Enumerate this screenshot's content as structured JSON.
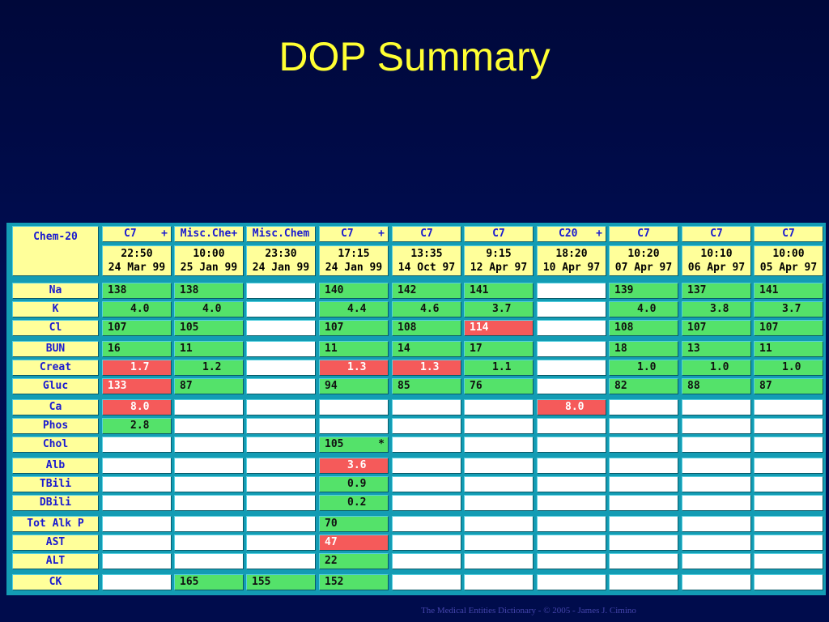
{
  "title": "DOP Summary",
  "footer": "The Medical Entities Dictionary - © 2005 - James J. Cimino",
  "panel_label": "Chem-20",
  "colors": {
    "normal": "#54e26a",
    "abnormal": "#f55a5a",
    "empty": "#ffffff",
    "header": "#ffff9a",
    "frame": "#139cb4"
  },
  "columns": [
    {
      "name": "C7",
      "more": "+",
      "time": "22:50",
      "date": "24 Mar 99"
    },
    {
      "name": "Misc.Che+",
      "more": "",
      "time": "10:00",
      "date": "25 Jan 99"
    },
    {
      "name": "Misc.Chem",
      "more": "",
      "time": "23:30",
      "date": "24 Jan 99"
    },
    {
      "name": "C7",
      "more": "+",
      "time": "17:15",
      "date": "24 Jan 99"
    },
    {
      "name": "C7",
      "more": "",
      "time": "13:35",
      "date": "14 Oct 97"
    },
    {
      "name": "C7",
      "more": "",
      "time": "9:15",
      "date": "12 Apr 97"
    },
    {
      "name": "C20",
      "more": "+",
      "time": "18:20",
      "date": "10 Apr 97"
    },
    {
      "name": "C7",
      "more": "",
      "time": "10:20",
      "date": "07 Apr 97"
    },
    {
      "name": "C7",
      "more": "",
      "time": "10:10",
      "date": "06 Apr 97"
    },
    {
      "name": "C7",
      "more": "",
      "time": "10:00",
      "date": "05 Apr 97"
    }
  ],
  "groups": [
    {
      "rows": [
        {
          "label": "Na",
          "cells": [
            {
              "v": "138",
              "s": "g"
            },
            {
              "v": "138",
              "s": "g"
            },
            {
              "v": "",
              "s": "w"
            },
            {
              "v": "140",
              "s": "g"
            },
            {
              "v": "142",
              "s": "g"
            },
            {
              "v": "141",
              "s": "g"
            },
            {
              "v": "",
              "s": "w"
            },
            {
              "v": "139",
              "s": "g"
            },
            {
              "v": "137",
              "s": "g"
            },
            {
              "v": "141",
              "s": "g"
            }
          ]
        },
        {
          "label": "K",
          "cells": [
            {
              "v": "4.0",
              "s": "g",
              "d": 1
            },
            {
              "v": "4.0",
              "s": "g",
              "d": 1
            },
            {
              "v": "",
              "s": "w"
            },
            {
              "v": "4.4",
              "s": "g",
              "d": 1
            },
            {
              "v": "4.6",
              "s": "g",
              "d": 1
            },
            {
              "v": "3.7",
              "s": "g",
              "d": 1
            },
            {
              "v": "",
              "s": "w"
            },
            {
              "v": "4.0",
              "s": "g",
              "d": 1
            },
            {
              "v": "3.8",
              "s": "g",
              "d": 1
            },
            {
              "v": "3.7",
              "s": "g",
              "d": 1
            }
          ]
        },
        {
          "label": "Cl",
          "cells": [
            {
              "v": "107",
              "s": "g"
            },
            {
              "v": "105",
              "s": "g"
            },
            {
              "v": "",
              "s": "w"
            },
            {
              "v": "107",
              "s": "g"
            },
            {
              "v": "108",
              "s": "g"
            },
            {
              "v": "114",
              "s": "r"
            },
            {
              "v": "",
              "s": "w"
            },
            {
              "v": "108",
              "s": "g"
            },
            {
              "v": "107",
              "s": "g"
            },
            {
              "v": "107",
              "s": "g"
            }
          ]
        }
      ]
    },
    {
      "rows": [
        {
          "label": "BUN",
          "cells": [
            {
              "v": "16",
              "s": "g"
            },
            {
              "v": "11",
              "s": "g"
            },
            {
              "v": "",
              "s": "w"
            },
            {
              "v": "11",
              "s": "g"
            },
            {
              "v": "14",
              "s": "g"
            },
            {
              "v": "17",
              "s": "g"
            },
            {
              "v": "",
              "s": "w"
            },
            {
              "v": "18",
              "s": "g"
            },
            {
              "v": "13",
              "s": "g"
            },
            {
              "v": "11",
              "s": "g"
            }
          ]
        },
        {
          "label": "Creat",
          "cells": [
            {
              "v": "1.7",
              "s": "r",
              "d": 1
            },
            {
              "v": "1.2",
              "s": "g",
              "d": 1
            },
            {
              "v": "",
              "s": "w"
            },
            {
              "v": "1.3",
              "s": "r",
              "d": 1
            },
            {
              "v": "1.3",
              "s": "r",
              "d": 1
            },
            {
              "v": "1.1",
              "s": "g",
              "d": 1
            },
            {
              "v": "",
              "s": "w"
            },
            {
              "v": "1.0",
              "s": "g",
              "d": 1
            },
            {
              "v": "1.0",
              "s": "g",
              "d": 1
            },
            {
              "v": "1.0",
              "s": "g",
              "d": 1
            }
          ]
        },
        {
          "label": "Gluc",
          "cells": [
            {
              "v": "133",
              "s": "r"
            },
            {
              "v": "87",
              "s": "g"
            },
            {
              "v": "",
              "s": "w"
            },
            {
              "v": "94",
              "s": "g"
            },
            {
              "v": "85",
              "s": "g"
            },
            {
              "v": "76",
              "s": "g"
            },
            {
              "v": "",
              "s": "w"
            },
            {
              "v": "82",
              "s": "g"
            },
            {
              "v": "88",
              "s": "g"
            },
            {
              "v": "87",
              "s": "g"
            }
          ]
        }
      ]
    },
    {
      "rows": [
        {
          "label": "Ca",
          "cells": [
            {
              "v": "8.0",
              "s": "r",
              "d": 1
            },
            {
              "v": "",
              "s": "w"
            },
            {
              "v": "",
              "s": "w"
            },
            {
              "v": "",
              "s": "w"
            },
            {
              "v": "",
              "s": "w"
            },
            {
              "v": "",
              "s": "w"
            },
            {
              "v": "8.0",
              "s": "r",
              "d": 1
            },
            {
              "v": "",
              "s": "w"
            },
            {
              "v": "",
              "s": "w"
            },
            {
              "v": "",
              "s": "w"
            }
          ]
        },
        {
          "label": "Phos",
          "cells": [
            {
              "v": "2.8",
              "s": "g",
              "d": 1
            },
            {
              "v": "",
              "s": "w"
            },
            {
              "v": "",
              "s": "w"
            },
            {
              "v": "",
              "s": "w"
            },
            {
              "v": "",
              "s": "w"
            },
            {
              "v": "",
              "s": "w"
            },
            {
              "v": "",
              "s": "w"
            },
            {
              "v": "",
              "s": "w"
            },
            {
              "v": "",
              "s": "w"
            },
            {
              "v": "",
              "s": "w"
            }
          ]
        },
        {
          "label": "Chol",
          "cells": [
            {
              "v": "",
              "s": "w"
            },
            {
              "v": "",
              "s": "w"
            },
            {
              "v": "",
              "s": "w"
            },
            {
              "v": "105",
              "s": "g",
              "f": "*"
            },
            {
              "v": "",
              "s": "w"
            },
            {
              "v": "",
              "s": "w"
            },
            {
              "v": "",
              "s": "w"
            },
            {
              "v": "",
              "s": "w"
            },
            {
              "v": "",
              "s": "w"
            },
            {
              "v": "",
              "s": "w"
            }
          ]
        }
      ]
    },
    {
      "rows": [
        {
          "label": "Alb",
          "cells": [
            {
              "v": "",
              "s": "w"
            },
            {
              "v": "",
              "s": "w"
            },
            {
              "v": "",
              "s": "w"
            },
            {
              "v": "3.6",
              "s": "r",
              "d": 1
            },
            {
              "v": "",
              "s": "w"
            },
            {
              "v": "",
              "s": "w"
            },
            {
              "v": "",
              "s": "w"
            },
            {
              "v": "",
              "s": "w"
            },
            {
              "v": "",
              "s": "w"
            },
            {
              "v": "",
              "s": "w"
            }
          ]
        },
        {
          "label": "TBili",
          "cells": [
            {
              "v": "",
              "s": "w"
            },
            {
              "v": "",
              "s": "w"
            },
            {
              "v": "",
              "s": "w"
            },
            {
              "v": "0.9",
              "s": "g",
              "d": 1
            },
            {
              "v": "",
              "s": "w"
            },
            {
              "v": "",
              "s": "w"
            },
            {
              "v": "",
              "s": "w"
            },
            {
              "v": "",
              "s": "w"
            },
            {
              "v": "",
              "s": "w"
            },
            {
              "v": "",
              "s": "w"
            }
          ]
        },
        {
          "label": "DBili",
          "cells": [
            {
              "v": "",
              "s": "w"
            },
            {
              "v": "",
              "s": "w"
            },
            {
              "v": "",
              "s": "w"
            },
            {
              "v": "0.2",
              "s": "g",
              "d": 1
            },
            {
              "v": "",
              "s": "w"
            },
            {
              "v": "",
              "s": "w"
            },
            {
              "v": "",
              "s": "w"
            },
            {
              "v": "",
              "s": "w"
            },
            {
              "v": "",
              "s": "w"
            },
            {
              "v": "",
              "s": "w"
            }
          ]
        }
      ]
    },
    {
      "rows": [
        {
          "label": "Tot Alk P",
          "cells": [
            {
              "v": "",
              "s": "w"
            },
            {
              "v": "",
              "s": "w"
            },
            {
              "v": "",
              "s": "w"
            },
            {
              "v": "70",
              "s": "g"
            },
            {
              "v": "",
              "s": "w"
            },
            {
              "v": "",
              "s": "w"
            },
            {
              "v": "",
              "s": "w"
            },
            {
              "v": "",
              "s": "w"
            },
            {
              "v": "",
              "s": "w"
            },
            {
              "v": "",
              "s": "w"
            }
          ]
        },
        {
          "label": "AST",
          "cells": [
            {
              "v": "",
              "s": "w"
            },
            {
              "v": "",
              "s": "w"
            },
            {
              "v": "",
              "s": "w"
            },
            {
              "v": "47",
              "s": "r"
            },
            {
              "v": "",
              "s": "w"
            },
            {
              "v": "",
              "s": "w"
            },
            {
              "v": "",
              "s": "w"
            },
            {
              "v": "",
              "s": "w"
            },
            {
              "v": "",
              "s": "w"
            },
            {
              "v": "",
              "s": "w"
            }
          ]
        },
        {
          "label": "ALT",
          "cells": [
            {
              "v": "",
              "s": "w"
            },
            {
              "v": "",
              "s": "w"
            },
            {
              "v": "",
              "s": "w"
            },
            {
              "v": "22",
              "s": "g"
            },
            {
              "v": "",
              "s": "w"
            },
            {
              "v": "",
              "s": "w"
            },
            {
              "v": "",
              "s": "w"
            },
            {
              "v": "",
              "s": "w"
            },
            {
              "v": "",
              "s": "w"
            },
            {
              "v": "",
              "s": "w"
            }
          ]
        }
      ]
    },
    {
      "rows": [
        {
          "label": "CK",
          "cells": [
            {
              "v": "",
              "s": "w"
            },
            {
              "v": "165",
              "s": "g"
            },
            {
              "v": "155",
              "s": "g"
            },
            {
              "v": "152",
              "s": "g"
            },
            {
              "v": "",
              "s": "w"
            },
            {
              "v": "",
              "s": "w"
            },
            {
              "v": "",
              "s": "w"
            },
            {
              "v": "",
              "s": "w"
            },
            {
              "v": "",
              "s": "w"
            },
            {
              "v": "",
              "s": "w"
            }
          ]
        }
      ]
    }
  ]
}
